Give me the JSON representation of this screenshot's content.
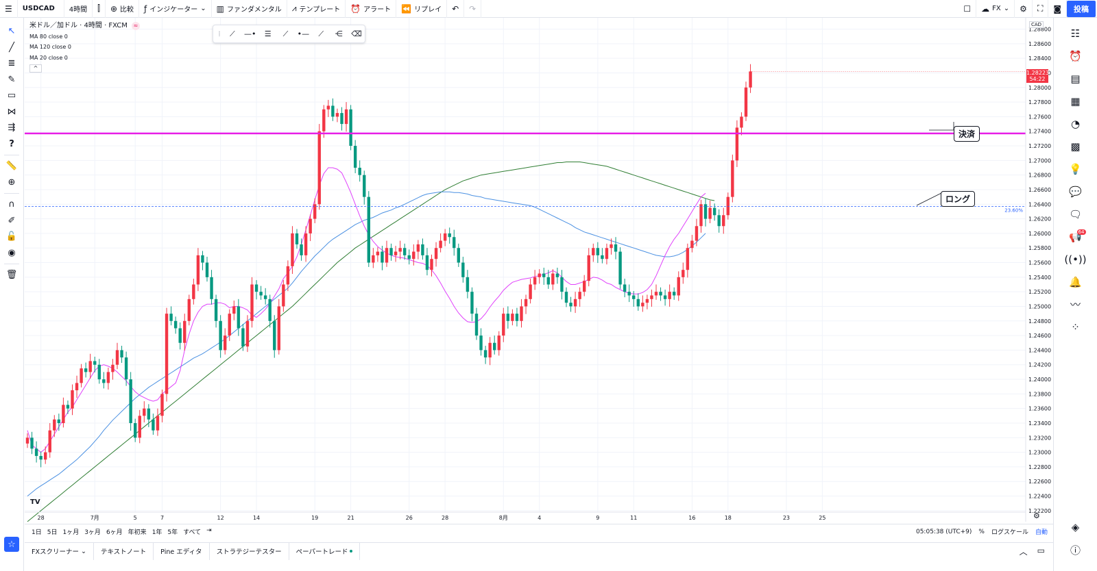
{
  "toolbar": {
    "menu_icon": "hamburger-icon",
    "symbol": "USDCAD",
    "interval": "4時間",
    "compare": "比較",
    "indicators": "インジケーター",
    "fundamentals": "ファンダメンタル",
    "templates": "テンプレート",
    "alert": "アラート",
    "replay": "リプレイ",
    "broker": "FX",
    "post": "投稿"
  },
  "legend": {
    "title": "米ドル／加ドル · 4時間 · FXCM",
    "ma": [
      "MA 80 close 0",
      "MA 120 close 0",
      "MA 20 close 0"
    ]
  },
  "callouts": {
    "settle": "決済",
    "long": "ロング"
  },
  "price_axis": {
    "currency": "CAD",
    "current_price": "1.28223",
    "countdown": "54:22",
    "fib_label": "23.60%"
  },
  "timeframes": [
    "1日",
    "5日",
    "1ヶ月",
    "3ヶ月",
    "6ヶ月",
    "年初来",
    "1年",
    "5年",
    "すべて"
  ],
  "status": {
    "clock": "05:05:38 (UTC+9)",
    "percent": "%",
    "log": "ログスケール",
    "auto": "自動"
  },
  "bottom_tabs": [
    "FXスクリーナー",
    "テキストノート",
    "Pine エディタ",
    "ストラテジーテスター",
    "ペーパートレード"
  ],
  "colors": {
    "up": "#f23645",
    "down": "#089981",
    "ma20": "#e040fb",
    "ma80": "#4a90e2",
    "ma120": "#2e7d32",
    "hline": "#e61ee6",
    "fib": "#2962ff"
  },
  "chart_data": {
    "type": "candlestick",
    "y_ticks": [
      "1.28800",
      "1.28600",
      "1.28400",
      "1.28200",
      "1.28000",
      "1.27800",
      "1.27600",
      "1.27400",
      "1.27200",
      "1.27000",
      "1.26800",
      "1.26600",
      "1.26400",
      "1.26200",
      "1.26000",
      "1.25800",
      "1.25600",
      "1.25400",
      "1.25200",
      "1.25000",
      "1.24800",
      "1.24600",
      "1.24400",
      "1.24200",
      "1.24000",
      "1.23800",
      "1.23600",
      "1.23400",
      "1.23200",
      "1.23000",
      "1.22800",
      "1.22600",
      "1.22400",
      "1.22200"
    ],
    "ylim": [
      1.2218,
      1.2888
    ],
    "x_ticks": [
      {
        "label": "28",
        "i": 3
      },
      {
        "label": "7月",
        "i": 15
      },
      {
        "label": "5",
        "i": 24
      },
      {
        "label": "7",
        "i": 30
      },
      {
        "label": "12",
        "i": 43
      },
      {
        "label": "14",
        "i": 51
      },
      {
        "label": "19",
        "i": 64
      },
      {
        "label": "21",
        "i": 72
      },
      {
        "label": "26",
        "i": 85
      },
      {
        "label": "28",
        "i": 93
      },
      {
        "label": "8月",
        "i": 106
      },
      {
        "label": "4",
        "i": 114
      },
      {
        "label": "9",
        "i": 127
      },
      {
        "label": "11",
        "i": 135
      },
      {
        "label": "16",
        "i": 148
      },
      {
        "label": "18",
        "i": 156
      },
      {
        "label": "23",
        "i": 169
      },
      {
        "label": "25",
        "i": 177
      }
    ],
    "hline": 1.2737,
    "fib_level": 1.2637,
    "closes": [
      1.232,
      1.2305,
      1.2295,
      1.229,
      1.23,
      1.233,
      1.2345,
      1.234,
      1.2365,
      1.236,
      1.2385,
      1.2395,
      1.2415,
      1.241,
      1.2425,
      1.242,
      1.24,
      1.2395,
      1.241,
      1.242,
      1.244,
      1.243,
      1.24,
      1.234,
      1.232,
      1.235,
      1.236,
      1.2345,
      1.233,
      1.235,
      1.238,
      1.249,
      1.248,
      1.247,
      1.245,
      1.248,
      1.251,
      1.253,
      1.257,
      1.256,
      1.254,
      1.251,
      1.248,
      1.244,
      1.246,
      1.249,
      1.25,
      1.247,
      1.2445,
      1.248,
      1.253,
      1.252,
      1.2515,
      1.251,
      1.248,
      1.244,
      1.25,
      1.253,
      1.2555,
      1.26,
      1.2585,
      1.257,
      1.26,
      1.262,
      1.264,
      1.274,
      1.277,
      1.2775,
      1.276,
      1.2765,
      1.275,
      1.277,
      1.272,
      1.269,
      1.268,
      1.265,
      1.256,
      1.257,
      1.2575,
      1.256,
      1.258,
      1.257,
      1.2575,
      1.258,
      1.257,
      1.2565,
      1.2575,
      1.2585,
      1.257,
      1.255,
      1.2565,
      1.258,
      1.259,
      1.26,
      1.2595,
      1.258,
      1.256,
      1.254,
      1.252,
      1.249,
      1.246,
      1.244,
      1.243,
      1.245,
      1.244,
      1.246,
      1.249,
      1.248,
      1.249,
      1.248,
      1.25,
      1.251,
      1.253,
      1.254,
      1.2545,
      1.254,
      1.253,
      1.2545,
      1.254,
      1.252,
      1.2505,
      1.25,
      1.251,
      1.252,
      1.2535,
      1.257,
      1.258,
      1.257,
      1.2565,
      1.258,
      1.2585,
      1.2575,
      1.253,
      1.252,
      1.2515,
      1.251,
      1.25,
      1.2505,
      1.251,
      1.2515,
      1.252,
      1.2515,
      1.251,
      1.252,
      1.2515,
      1.254,
      1.255,
      1.258,
      1.259,
      1.261,
      1.264,
      1.262,
      1.2635,
      1.2625,
      1.261,
      1.2625,
      1.265,
      1.27,
      1.2745,
      1.276,
      1.28,
      1.2822
    ],
    "ma20": [
      1.233,
      1.231,
      1.2305,
      1.23,
      1.2305,
      1.2315,
      1.2325,
      1.2335,
      1.2345,
      1.2355,
      1.2362,
      1.2372,
      1.2382,
      1.2392,
      1.2402,
      1.2412,
      1.2418,
      1.242,
      1.2418,
      1.2415,
      1.241,
      1.2404,
      1.2398,
      1.239,
      1.2383,
      1.2378,
      1.2375,
      1.2372,
      1.237,
      1.2372,
      1.238,
      1.2385,
      1.239,
      1.2395,
      1.2412,
      1.244,
      1.2462,
      1.248,
      1.2492,
      1.25,
      1.2503,
      1.2503,
      1.2505,
      1.2505,
      1.2503,
      1.2498,
      1.25,
      1.25,
      1.2498,
      1.2495,
      1.2488,
      1.2485,
      1.249,
      1.2496,
      1.2504,
      1.2514,
      1.2524,
      1.2538,
      1.2546,
      1.2555,
      1.2568,
      1.2585,
      1.2605,
      1.2625,
      1.2646,
      1.2666,
      1.2682,
      1.269,
      1.269,
      1.2688,
      1.2683,
      1.267,
      1.2656,
      1.264,
      1.2624,
      1.261,
      1.2598,
      1.2589,
      1.2582,
      1.2577,
      1.2573,
      1.257,
      1.2568,
      1.2567,
      1.2566,
      1.2564,
      1.2562,
      1.256,
      1.2559,
      1.2556,
      1.255,
      1.2542,
      1.2532,
      1.2521,
      1.2511,
      1.25,
      1.2491,
      1.2484,
      1.2479,
      1.2478,
      1.2479,
      1.2483,
      1.249,
      1.2499,
      1.2507,
      1.2514,
      1.2522,
      1.2528,
      1.2533,
      1.2535,
      1.2537,
      1.2538,
      1.2539,
      1.2541,
      1.2542,
      1.2544,
      1.2546,
      1.2549,
      1.2546,
      1.254,
      1.2534,
      1.253,
      1.253,
      1.2532,
      1.2534,
      1.2537,
      1.254,
      1.2539,
      1.2536,
      1.2532,
      1.253,
      1.2526,
      1.2523,
      1.252,
      1.2518,
      1.2517,
      1.2517,
      1.2519,
      1.2523,
      1.253,
      1.2542,
      1.2556,
      1.257,
      1.2582,
      1.2592,
      1.26,
      1.261,
      1.262,
      1.263,
      1.264,
      1.265,
      1.2655
    ],
    "ma80": [
      1.224,
      1.2245,
      1.225,
      1.2254,
      1.2258,
      1.2262,
      1.2266,
      1.227,
      1.2275,
      1.228,
      1.2285,
      1.229,
      1.2296,
      1.2302,
      1.2308,
      1.2315,
      1.2322,
      1.233,
      1.2337,
      1.2344,
      1.235,
      1.2356,
      1.2362,
      1.2368,
      1.2374,
      1.2379,
      1.2384,
      1.2389,
      1.2393,
      1.2397,
      1.2401,
      1.2405,
      1.2409,
      1.2413,
      1.2417,
      1.2421,
      1.2425,
      1.2429,
      1.2432,
      1.2435,
      1.2439,
      1.2443,
      1.2447,
      1.2451,
      1.2455,
      1.246,
      1.2465,
      1.247,
      1.2475,
      1.248,
      1.2485,
      1.249,
      1.2495,
      1.25,
      1.2505,
      1.251,
      1.2515,
      1.252,
      1.2525,
      1.2532,
      1.254,
      1.2548,
      1.2555,
      1.2562,
      1.2569,
      1.2575,
      1.2581,
      1.2587,
      1.2592,
      1.2596,
      1.26,
      1.2604,
      1.2608,
      1.2612,
      1.2615,
      1.2618,
      1.262,
      1.2622,
      1.2625,
      1.2628,
      1.263,
      1.2632,
      1.2635,
      1.2637,
      1.264,
      1.2643,
      1.2646,
      1.2649,
      1.2652,
      1.2654,
      1.2655,
      1.2656,
      1.2657,
      1.2657,
      1.2657,
      1.2656,
      1.2656,
      1.2655,
      1.2654,
      1.2652,
      1.2651,
      1.265,
      1.2648,
      1.2647,
      1.2646,
      1.2645,
      1.2644,
      1.2643,
      1.2642,
      1.2641,
      1.264,
      1.2639,
      1.2638,
      1.2636,
      1.2633,
      1.263,
      1.2627,
      1.2624,
      1.2621,
      1.2618,
      1.2615,
      1.2612,
      1.2608,
      1.2605,
      1.2602,
      1.26,
      1.2598,
      1.2596,
      1.2594,
      1.2592,
      1.259,
      1.2588,
      1.2586,
      1.2584,
      1.2582,
      1.258,
      1.2578,
      1.2576,
      1.2574,
      1.2572,
      1.257,
      1.2569,
      1.2568,
      1.2568,
      1.2569,
      1.2571,
      1.2574,
      1.2578,
      1.2583,
      1.2588,
      1.2594,
      1.26
    ],
    "ma120": [
      1.2205,
      1.221,
      1.2215,
      1.222,
      1.2225,
      1.223,
      1.2235,
      1.224,
      1.2245,
      1.225,
      1.2255,
      1.226,
      1.2265,
      1.227,
      1.2275,
      1.228,
      1.2285,
      1.229,
      1.2295,
      1.23,
      1.2305,
      1.231,
      1.2315,
      1.232,
      1.2325,
      1.233,
      1.2335,
      1.234,
      1.2345,
      1.235,
      1.2355,
      1.236,
      1.2365,
      1.237,
      1.2375,
      1.238,
      1.2385,
      1.239,
      1.2395,
      1.24,
      1.2405,
      1.241,
      1.2415,
      1.242,
      1.2425,
      1.243,
      1.2435,
      1.244,
      1.2445,
      1.245,
      1.2455,
      1.246,
      1.2465,
      1.247,
      1.2475,
      1.248,
      1.2485,
      1.249,
      1.2495,
      1.25,
      1.2506,
      1.2512,
      1.2518,
      1.2524,
      1.253,
      1.2536,
      1.2542,
      1.2548,
      1.2554,
      1.256,
      1.2565,
      1.257,
      1.2575,
      1.258,
      1.2584,
      1.2588,
      1.2592,
      1.2596,
      1.26,
      1.2604,
      1.2608,
      1.2612,
      1.2616,
      1.262,
      1.2624,
      1.2628,
      1.2632,
      1.2636,
      1.264,
      1.2644,
      1.2648,
      1.2652,
      1.2656,
      1.266,
      1.2663,
      1.2666,
      1.2669,
      1.2672,
      1.2674,
      1.2676,
      1.2678,
      1.268,
      1.2681,
      1.2682,
      1.2683,
      1.2684,
      1.2685,
      1.2686,
      1.2687,
      1.2688,
      1.2689,
      1.269,
      1.2691,
      1.2692,
      1.2693,
      1.2694,
      1.2695,
      1.2696,
      1.2697,
      1.2697,
      1.2698,
      1.2698,
      1.2698,
      1.2698,
      1.2697,
      1.2696,
      1.2695,
      1.2694,
      1.2693,
      1.2692,
      1.269,
      1.2688,
      1.2686,
      1.2684,
      1.2682,
      1.268,
      1.2678,
      1.2676,
      1.2674,
      1.2672,
      1.267,
      1.2668,
      1.2666,
      1.2664,
      1.2662,
      1.266,
      1.2658,
      1.2656,
      1.2654,
      1.2652,
      1.265,
      1.2648,
      1.2646,
      1.2645
    ]
  }
}
